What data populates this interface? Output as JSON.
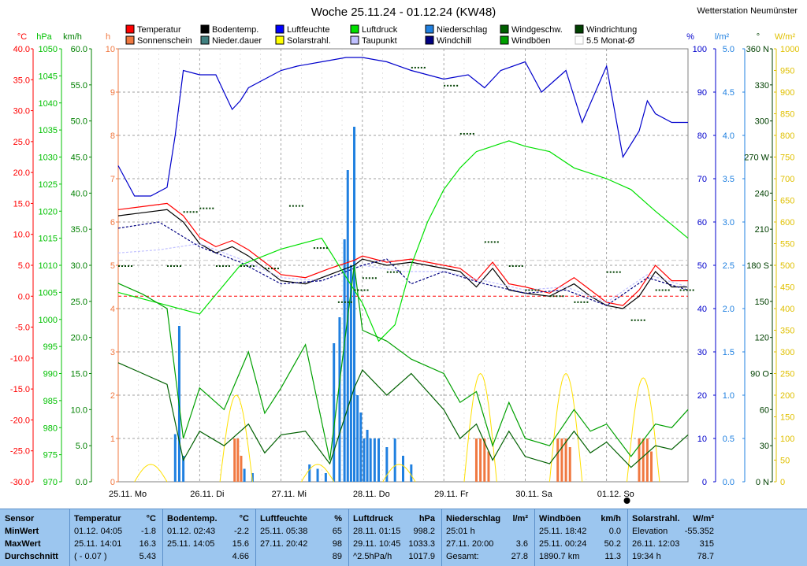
{
  "header": {
    "title": "Woche 25.11.24 - 01.12.24 (KW48)",
    "station": "Wetterstation Neumünster"
  },
  "legend": [
    {
      "label": "Temperatur",
      "color": "#ff0000"
    },
    {
      "label": "Sonnenschein",
      "color": "#f07840"
    },
    {
      "label": "Bodentemp.",
      "color": "#000000"
    },
    {
      "label": "Nieder.dauer",
      "color": "#408080"
    },
    {
      "label": "Luftfeuchte",
      "color": "#0000ff"
    },
    {
      "label": "Solarstrahl.",
      "color": "#ffff00"
    },
    {
      "label": "Luftdruck",
      "color": "#00e000"
    },
    {
      "label": "Taupunkt",
      "color": "#c0c0ff"
    },
    {
      "label": "Niederschlag",
      "color": "#2080e0"
    },
    {
      "label": "Windchill",
      "color": "#000080"
    },
    {
      "label": "Windgeschw.",
      "color": "#006000"
    },
    {
      "label": "Windböen",
      "color": "#00a000"
    },
    {
      "label": "Windrichtung",
      "color": "#004000"
    },
    {
      "label": "5.5 Monat-Ø",
      "color": "#c0c0c0"
    }
  ],
  "axes_headers": {
    "temp": "°C",
    "press": "hPa",
    "wind": "km/h",
    "hours": "h",
    "hum": "%",
    "rain": "l/m²",
    "dir": "°",
    "solar": "W/m²"
  },
  "chart_data": {
    "type": "line",
    "title": "Woche 25.11.24 - 01.12.24 (KW48)",
    "x_labels": [
      "25.11. Mo",
      "26.11. Di",
      "27.11. Mi",
      "28.11. Do",
      "29.11. Fr",
      "30.11. Sa",
      "01.12. So"
    ],
    "axes": {
      "temperature_c": {
        "range": [
          -30,
          40
        ],
        "ticks": [
          "40.0",
          "35.0",
          "30.0",
          "25.0",
          "20.0",
          "15.0",
          "10.0",
          "5.0",
          "0.0",
          "-5.0",
          "-10.0",
          "-15.0",
          "-20.0",
          "-25.0",
          "-30.0"
        ]
      },
      "pressure_hpa": {
        "range": [
          970,
          1050
        ],
        "ticks": [
          "1050",
          "1045",
          "1040",
          "1035",
          "1030",
          "1025",
          "1020",
          "1015",
          "1010",
          "1005",
          "1000",
          "995",
          "990",
          "985",
          "980",
          "975",
          "970"
        ]
      },
      "wind_kmh": {
        "range": [
          0,
          60
        ],
        "ticks": [
          "60.0",
          "55.0",
          "50.0",
          "45.0",
          "40.0",
          "35.0",
          "30.0",
          "25.0",
          "20.0",
          "15.0",
          "10.0",
          "5.0",
          "0.0"
        ]
      },
      "hours_h": {
        "range": [
          0,
          10
        ],
        "ticks": [
          "10",
          "9",
          "8",
          "7",
          "6",
          "5",
          "4",
          "3",
          "2",
          "1",
          "0"
        ]
      },
      "humidity_pct": {
        "range": [
          0,
          100
        ],
        "ticks": [
          "100",
          "90",
          "80",
          "70",
          "60",
          "50",
          "40",
          "30",
          "20",
          "10",
          "0"
        ]
      },
      "rain_lm2": {
        "range": [
          0,
          5
        ],
        "ticks": [
          "5.0",
          "4.5",
          "4.0",
          "3.5",
          "3.0",
          "2.5",
          "2.0",
          "1.5",
          "1.0",
          "0.5",
          "0.0"
        ]
      },
      "direction_deg": {
        "range": [
          0,
          360
        ],
        "ticks": [
          "360 N",
          "330",
          "300",
          "270 W",
          "240",
          "210",
          "180 S",
          "150",
          "120",
          "90 O",
          "60",
          "30",
          "0 N"
        ]
      },
      "solar_wm2": {
        "range": [
          0,
          1000
        ],
        "ticks": [
          "1000",
          "950",
          "900",
          "850",
          "800",
          "750",
          "700",
          "650",
          "600",
          "550",
          "500",
          "450",
          "400",
          "350",
          "300",
          "250",
          "200",
          "150",
          "100",
          "50",
          "0"
        ]
      }
    },
    "series": [
      {
        "name": "Temperatur",
        "unit": "°C",
        "color": "#ff0000",
        "x": [
          0,
          0.3,
          0.6,
          0.8,
          1.0,
          1.2,
          1.4,
          1.6,
          1.8,
          2.0,
          2.3,
          2.6,
          2.9,
          3.0,
          3.3,
          3.6,
          4.0,
          4.2,
          4.4,
          4.6,
          4.8,
          5.0,
          5.3,
          5.6,
          5.8,
          6.0,
          6.2,
          6.4,
          6.6,
          6.8,
          7.0
        ],
        "values": [
          14.0,
          14.5,
          15.0,
          13.0,
          9.5,
          8.0,
          9.0,
          7.5,
          5.5,
          3.5,
          3.0,
          4.5,
          5.8,
          6.5,
          5.5,
          6.0,
          5.0,
          4.5,
          2.5,
          5.5,
          2.0,
          1.5,
          0.5,
          3.0,
          1.0,
          -1.0,
          -1.5,
          1.0,
          5.0,
          2.5,
          2.5
        ]
      },
      {
        "name": "Bodentemp.",
        "unit": "°C",
        "color": "#000000",
        "x": [
          0,
          0.3,
          0.6,
          0.8,
          1.0,
          1.2,
          1.4,
          1.6,
          1.8,
          2.0,
          2.3,
          2.6,
          2.9,
          3.0,
          3.3,
          3.6,
          4.0,
          4.2,
          4.4,
          4.6,
          4.8,
          5.0,
          5.3,
          5.6,
          5.8,
          6.0,
          6.2,
          6.4,
          6.6,
          6.8,
          7.0
        ],
        "values": [
          13.0,
          13.5,
          14.0,
          12.0,
          8.5,
          7.0,
          8.0,
          6.5,
          4.5,
          2.5,
          2.0,
          3.5,
          5.0,
          6.0,
          5.0,
          5.5,
          4.5,
          4.0,
          1.5,
          4.5,
          1.0,
          0.5,
          0.0,
          2.0,
          0.0,
          -1.5,
          -2.0,
          0.0,
          4.0,
          1.5,
          1.5
        ]
      },
      {
        "name": "Taupunkt",
        "unit": "°C",
        "color": "#c0c0ff",
        "x": [
          0,
          0.5,
          1.0,
          1.5,
          2.0,
          2.5,
          3.0,
          3.5,
          4.0,
          4.5,
          5.0,
          5.5,
          6.0,
          6.5,
          7.0
        ],
        "values": [
          7.0,
          7.5,
          8.5,
          6.0,
          3.0,
          2.5,
          5.0,
          4.0,
          4.0,
          2.5,
          1.0,
          1.5,
          -1.0,
          3.5,
          1.5
        ]
      },
      {
        "name": "Windchill",
        "unit": "°C",
        "color": "#000080",
        "x": [
          0,
          0.5,
          1.0,
          1.5,
          2.0,
          2.5,
          3.0,
          3.3,
          3.6,
          4.0,
          4.5,
          5.0,
          5.5,
          6.0,
          6.5,
          7.0
        ],
        "values": [
          11.0,
          12.0,
          8.0,
          5.5,
          2.0,
          2.5,
          5.0,
          6.0,
          2.0,
          4.0,
          2.0,
          0.5,
          1.0,
          -1.5,
          3.0,
          1.0
        ]
      },
      {
        "name": "Luftfeuchte",
        "unit": "%",
        "color": "#0000cc",
        "x": [
          0,
          0.2,
          0.4,
          0.6,
          0.7,
          0.8,
          1.0,
          1.2,
          1.4,
          1.5,
          1.6,
          1.8,
          2.0,
          2.2,
          2.5,
          2.8,
          3.0,
          3.3,
          3.6,
          4.0,
          4.3,
          4.5,
          4.7,
          5.0,
          5.2,
          5.5,
          5.7,
          6.0,
          6.2,
          6.4,
          6.5,
          6.6,
          6.8,
          7.0
        ],
        "values": [
          73,
          66,
          66,
          68,
          80,
          95,
          94,
          94,
          86,
          88,
          91,
          93,
          95,
          96,
          97,
          98,
          98,
          97,
          95,
          93,
          94,
          91,
          95,
          97,
          90,
          95,
          83,
          96,
          75,
          81,
          88,
          85,
          83,
          83
        ]
      },
      {
        "name": "Luftdruck",
        "unit": "hPa",
        "color": "#00e000",
        "x": [
          0,
          0.5,
          1.0,
          1.5,
          2.0,
          2.5,
          3.0,
          3.2,
          3.4,
          3.6,
          3.8,
          4.0,
          4.2,
          4.4,
          4.6,
          4.8,
          5.0,
          5.3,
          5.6,
          6.0,
          6.3,
          6.6,
          7.0
        ],
        "values": [
          1005,
          1003,
          1001,
          1010,
          1013,
          1015,
          1003,
          996,
          999,
          1010,
          1018,
          1024,
          1028,
          1031,
          1032,
          1033,
          1032,
          1031,
          1028,
          1026,
          1024,
          1020,
          1015
        ]
      },
      {
        "name": "Windgeschw.",
        "unit": "km/h",
        "color": "#006000",
        "x": [
          0,
          0.3,
          0.6,
          0.8,
          1.0,
          1.3,
          1.6,
          1.8,
          2.0,
          2.3,
          2.6,
          2.9,
          3.0,
          3.3,
          3.6,
          4.0,
          4.2,
          4.4,
          4.6,
          4.8,
          5.0,
          5.3,
          5.6,
          5.8,
          6.0,
          6.3,
          6.6,
          6.8,
          7.0
        ],
        "values": [
          16.5,
          15.0,
          13.5,
          3.0,
          7.0,
          5.0,
          8.0,
          4.0,
          6.5,
          7.0,
          2.5,
          13.0,
          15.5,
          12.0,
          15.0,
          10.0,
          6.0,
          8.0,
          3.0,
          7.0,
          3.5,
          2.5,
          7.0,
          4.0,
          5.5,
          2.0,
          5.0,
          4.5,
          6.5
        ]
      },
      {
        "name": "Windböen",
        "unit": "km/h",
        "color": "#00a000",
        "x": [
          0,
          0.3,
          0.6,
          0.8,
          1.0,
          1.3,
          1.6,
          1.8,
          2.0,
          2.3,
          2.6,
          2.9,
          3.0,
          3.3,
          3.6,
          4.0,
          4.2,
          4.4,
          4.6,
          4.8,
          5.0,
          5.3,
          5.6,
          5.8,
          6.0,
          6.3,
          6.6,
          6.8,
          7.0
        ],
        "values": [
          27.5,
          26.0,
          24.0,
          6.0,
          13.0,
          10.0,
          18.0,
          9.5,
          13.0,
          19.0,
          3.0,
          30.0,
          21.0,
          19.5,
          17.0,
          15.0,
          11.0,
          12.5,
          5.0,
          11.0,
          6.0,
          5.0,
          10.0,
          7.0,
          8.0,
          3.5,
          8.0,
          7.5,
          10.0
        ]
      },
      {
        "name": "Windrichtung",
        "unit": "°",
        "color": "#004000",
        "style": "dots",
        "x": [
          0,
          0.6,
          0.8,
          1.0,
          1.2,
          1.5,
          1.8,
          2.1,
          2.4,
          2.7,
          2.9,
          3.0,
          3.3,
          3.6,
          4.0,
          4.2,
          4.5,
          4.8,
          5.0,
          5.3,
          5.6,
          6.0,
          6.3,
          6.6,
          6.9
        ],
        "values": [
          180,
          180,
          225,
          228,
          180,
          180,
          178,
          230,
          195,
          150,
          160,
          170,
          175,
          345,
          330,
          290,
          200,
          180,
          160,
          155,
          150,
          175,
          135,
          160,
          160
        ]
      }
    ],
    "bars": [
      {
        "name": "Niederschlag",
        "unit": "l/m²",
        "color": "#2080e0",
        "x": [
          0.7,
          0.75,
          0.8,
          1.55,
          1.65,
          2.35,
          2.45,
          2.55,
          2.65,
          2.72,
          2.78,
          2.82,
          2.86,
          2.9,
          2.94,
          2.98,
          3.02,
          3.06,
          3.1,
          3.15,
          3.2,
          3.3,
          3.4,
          3.5,
          3.6
        ],
        "values": [
          0.55,
          1.8,
          0.3,
          0.15,
          0.1,
          0.2,
          0.15,
          0.1,
          1.6,
          1.9,
          2.8,
          3.6,
          2.5,
          4.1,
          1.0,
          0.8,
          0.5,
          0.6,
          0.5,
          0.5,
          0.5,
          0.4,
          0.5,
          0.3,
          0.2
        ]
      },
      {
        "name": "Sonnenschein",
        "unit": "h",
        "color": "#f07840",
        "x": [
          1.43,
          1.47,
          1.51,
          4.4,
          4.45,
          4.5,
          4.55,
          5.4,
          5.45,
          5.5,
          5.55,
          6.4,
          6.45,
          6.5,
          6.55
        ],
        "values": [
          1.0,
          1.0,
          0.6,
          1.0,
          1.0,
          1.0,
          0.7,
          1.0,
          1.0,
          1.0,
          0.8,
          1.0,
          1.0,
          1.0,
          0.7
        ]
      }
    ],
    "solar": {
      "name": "Solarstrahl.",
      "unit": "W/m²",
      "color": "#ffe000",
      "peaks": [
        [
          0.4,
          40
        ],
        [
          1.45,
          200
        ],
        [
          2.45,
          40
        ],
        [
          3.45,
          40
        ],
        [
          4.45,
          250
        ],
        [
          5.5,
          250
        ],
        [
          6.45,
          240
        ]
      ]
    }
  },
  "stats": {
    "columns": [
      {
        "title": "Sensor",
        "unit": "",
        "rows": [
          "MinWert",
          "MaxWert",
          "Durchschnitt"
        ],
        "vals": [
          "",
          "",
          ""
        ]
      },
      {
        "title": "Temperatur",
        "unit": "°C",
        "rows": [
          "01.12.  04:05",
          "25.11.  14:01",
          "( - 0.07 )"
        ],
        "vals": [
          "-1.8",
          "16.3",
          "5.43"
        ]
      },
      {
        "title": "Bodentemp.",
        "unit": "°C",
        "rows": [
          "01.12.  02:43",
          "25.11.  14:05",
          ""
        ],
        "vals": [
          "-2.2",
          "15.6",
          "4.66"
        ]
      },
      {
        "title": "Luftfeuchte",
        "unit": "%",
        "rows": [
          "25.11.  05:38",
          "27.11.  20:42",
          ""
        ],
        "vals": [
          "65",
          "98",
          "89"
        ]
      },
      {
        "title": "Luftdruck",
        "unit": "hPa",
        "rows": [
          "28.11.  01:15",
          "29.11.  10:45",
          "^2.5hPa/h"
        ],
        "vals": [
          "998.2",
          "1033.3",
          "1017.9"
        ]
      },
      {
        "title": "Niederschlag",
        "unit": "l/m²",
        "rows": [
          "25:01 h",
          "27.11.  20:00",
          "Gesamt:"
        ],
        "vals": [
          "",
          "3.6",
          "27.8"
        ]
      },
      {
        "title": "Windböen",
        "unit": "km/h",
        "rows": [
          "25.11.  18:42",
          "25.11.  00:24",
          "1890.7 km"
        ],
        "vals": [
          "0.0",
          "50.2",
          "11.3"
        ]
      },
      {
        "title": "Solarstrahl.",
        "unit": "W/m²",
        "rows": [
          "Elevation",
          "26.11.  12:03",
          "19:34 h"
        ],
        "vals": [
          "-55.352",
          "315",
          "78.7"
        ]
      }
    ]
  }
}
